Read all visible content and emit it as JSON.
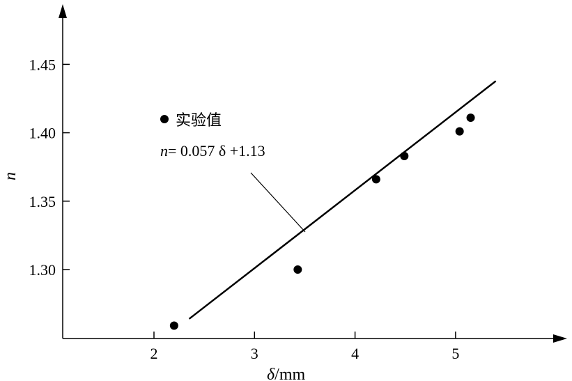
{
  "chart_data": {
    "type": "scatter",
    "xlabel_symbol": "δ",
    "xlabel_unit": "/mm",
    "ylabel": "n",
    "xlim": [
      1.0,
      6.1
    ],
    "ylim": [
      1.25,
      1.5
    ],
    "x_ticks": [
      2,
      3,
      4,
      5
    ],
    "y_ticks": [
      1.3,
      1.35,
      1.4,
      1.45
    ],
    "y_tick_labels": [
      "1.30",
      "1.35",
      "1.40",
      "1.45"
    ],
    "series": [
      {
        "name": "实验值",
        "type": "scatter",
        "x": [
          2.2,
          3.43,
          4.21,
          4.49,
          5.04,
          5.15
        ],
        "y": [
          1.259,
          1.3,
          1.366,
          1.383,
          1.401,
          1.411
        ]
      }
    ],
    "fit_line": {
      "label_var": "n",
      "label_rest": "= 0.057  δ +1.13",
      "x_start": 2.35,
      "x_end": 5.4
    },
    "legend": {
      "marker_label": "实验值",
      "placement": "top-left"
    },
    "grid": false
  }
}
